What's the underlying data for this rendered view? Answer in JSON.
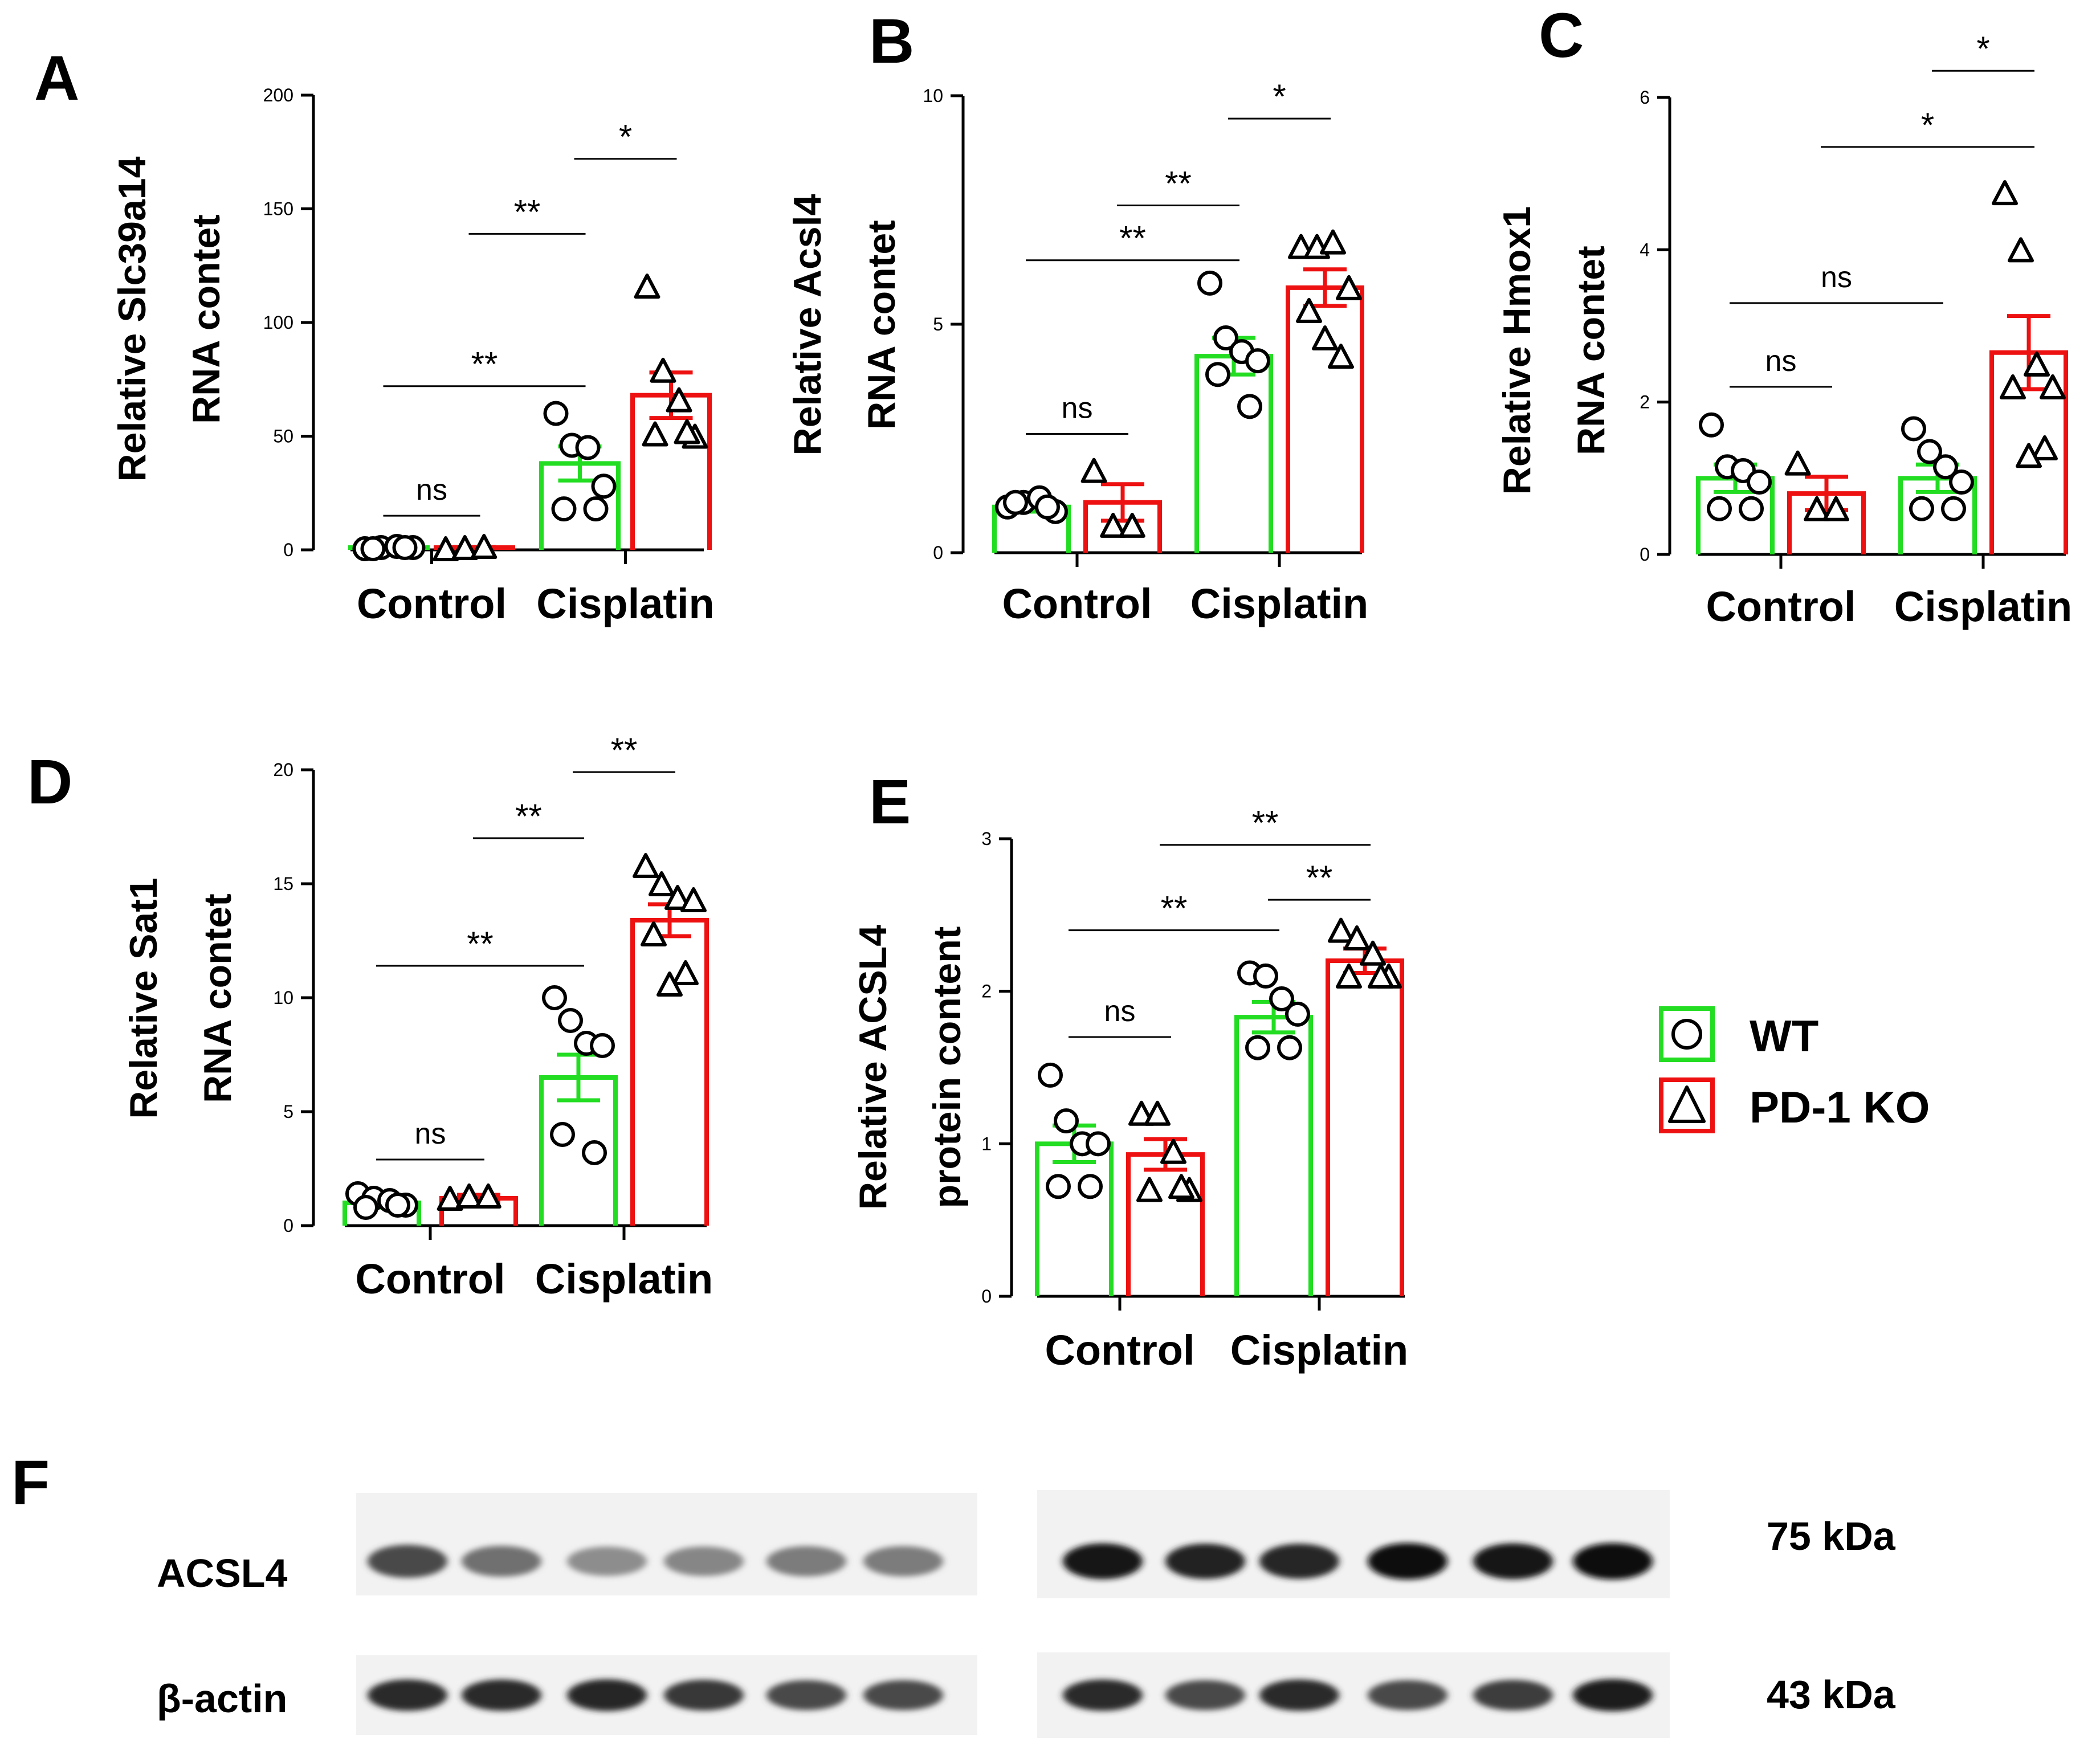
{
  "colors": {
    "wt": "#22dd22",
    "ko": "#ee1111",
    "axis": "#000000"
  },
  "legend": {
    "items": [
      {
        "label": "WT",
        "marker": "circle",
        "color": "#22dd22"
      },
      {
        "label": "PD-1 KO",
        "marker": "triangle",
        "color": "#ee1111"
      }
    ]
  },
  "chart_data": [
    {
      "panel": "A",
      "type": "bar",
      "ylabel_line1": "Relative Slc39a14",
      "ylabel_line2": "RNA contet",
      "categories": [
        "Control",
        "Cisplatin"
      ],
      "ylim": [
        0,
        200
      ],
      "yticks": [
        "0",
        "50",
        "100",
        "150",
        "200"
      ],
      "series": [
        {
          "name": "WT",
          "values": [
            1,
            38
          ],
          "sem": [
            0.5,
            7.5
          ],
          "points": [
            [
              0.5,
              1,
              1.5,
              1,
              0.5,
              1
            ],
            [
              60,
              46,
              45,
              28,
              18,
              18
            ]
          ]
        },
        {
          "name": "PD-1 KO",
          "values": [
            1,
            68
          ],
          "sem": [
            0.3,
            10
          ],
          "points": [
            [
              0.5,
              1,
              1.5
            ],
            [
              116,
              79,
              66,
              50,
              51,
              52
            ]
          ]
        }
      ],
      "brackets": [
        {
          "g1": [
            0,
            0
          ],
          "g2": [
            0,
            1
          ],
          "y": 15,
          "label": "ns"
        },
        {
          "g1": [
            0,
            0
          ],
          "g2": [
            1,
            0
          ],
          "y": 72,
          "label": "**"
        },
        {
          "g1": [
            0,
            1
          ],
          "g2": [
            1,
            0
          ],
          "y": 139,
          "label": "**"
        },
        {
          "g1": [
            1,
            0
          ],
          "g2": [
            1,
            1
          ],
          "y": 172,
          "label": "*"
        }
      ]
    },
    {
      "panel": "B",
      "type": "bar",
      "ylabel_line1": "Relative Acsl4",
      "ylabel_line2": "RNA contet",
      "categories": [
        "Control",
        "Cisplatin"
      ],
      "ylim": [
        0,
        10
      ],
      "yticks": [
        "0",
        "5",
        "10"
      ],
      "series": [
        {
          "name": "WT",
          "values": [
            1.0,
            4.3
          ],
          "sem": [
            0.1,
            0.4
          ],
          "points": [
            [
              1.0,
              1.1,
              1.2,
              0.9,
              1.1,
              1.0
            ],
            [
              5.9,
              4.7,
              4.4,
              4.2,
              3.9,
              3.2
            ]
          ]
        },
        {
          "name": "PD-1 KO",
          "values": [
            1.1,
            5.8
          ],
          "sem": [
            0.4,
            0.4
          ],
          "points": [
            [
              1.8,
              0.6,
              0.6
            ],
            [
              6.7,
              6.7,
              6.8,
              5.8,
              5.3,
              4.3,
              4.7
            ]
          ]
        }
      ],
      "brackets": [
        {
          "g1": [
            0,
            0
          ],
          "g2": [
            0,
            1
          ],
          "y": 2.6,
          "label": "ns"
        },
        {
          "g1": [
            0,
            0
          ],
          "g2": [
            1,
            0
          ],
          "y": 6.4,
          "label": "**"
        },
        {
          "g1": [
            0,
            1
          ],
          "g2": [
            1,
            0
          ],
          "y": 7.6,
          "label": "**"
        },
        {
          "g1": [
            1,
            0
          ],
          "g2": [
            1,
            1
          ],
          "y": 9.5,
          "label": "*"
        }
      ]
    },
    {
      "panel": "C",
      "type": "bar",
      "ylabel_line1": "Relative Hmox1",
      "ylabel_line2": "RNA contet",
      "categories": [
        "Control",
        "Cisplatin"
      ],
      "ylim": [
        0,
        6
      ],
      "yticks": [
        "0",
        "2",
        "4",
        "6"
      ],
      "series": [
        {
          "name": "WT",
          "values": [
            1.0,
            1.0
          ],
          "sem": [
            0.18,
            0.18
          ],
          "points": [
            [
              1.7,
              1.15,
              1.1,
              0.95,
              0.6,
              0.6
            ],
            [
              1.65,
              1.35,
              1.15,
              0.95,
              0.6,
              0.6
            ]
          ]
        },
        {
          "name": "PD-1 KO",
          "values": [
            0.8,
            2.65
          ],
          "sem": [
            0.22,
            0.48
          ],
          "points": [
            [
              1.2,
              0.6,
              0.6
            ],
            [
              4.75,
              4.0,
              2.5,
              2.2,
              2.2,
              1.4,
              1.3
            ]
          ]
        }
      ],
      "brackets": [
        {
          "g1": [
            0,
            0
          ],
          "g2": [
            0,
            1
          ],
          "y": 2.2,
          "label": "ns"
        },
        {
          "g1": [
            0,
            0
          ],
          "g2": [
            1,
            0
          ],
          "y": 3.3,
          "label": "ns"
        },
        {
          "g1": [
            0,
            1
          ],
          "g2": [
            1,
            1
          ],
          "y": 5.35,
          "label": "*"
        },
        {
          "g1": [
            1,
            0
          ],
          "g2": [
            1,
            1
          ],
          "y": 6.35,
          "label": "*"
        }
      ]
    },
    {
      "panel": "D",
      "type": "bar",
      "ylabel_line1": "Relative Sat1",
      "ylabel_line2": "RNA contet",
      "categories": [
        "Control",
        "Cisplatin"
      ],
      "ylim": [
        0,
        20
      ],
      "yticks": [
        "0",
        "5",
        "10",
        "15",
        "20"
      ],
      "series": [
        {
          "name": "WT",
          "values": [
            1.0,
            6.5
          ],
          "sem": [
            0.2,
            1.0
          ],
          "points": [
            [
              1.4,
              1.2,
              1.1,
              0.9,
              0.8,
              0.9
            ],
            [
              10.0,
              9.0,
              8.0,
              7.9,
              4.0,
              3.2
            ]
          ]
        },
        {
          "name": "PD-1 KO",
          "values": [
            1.2,
            13.4
          ],
          "sem": [
            0.15,
            0.7
          ],
          "points": [
            [
              1.2,
              1.3,
              1.3
            ],
            [
              15.8,
              15.0,
              14.4,
              14.3,
              12.8,
              11.1,
              10.6
            ]
          ]
        }
      ],
      "brackets": [
        {
          "g1": [
            0,
            0
          ],
          "g2": [
            0,
            1
          ],
          "y": 2.9,
          "label": "ns"
        },
        {
          "g1": [
            0,
            0
          ],
          "g2": [
            1,
            0
          ],
          "y": 11.4,
          "label": "**"
        },
        {
          "g1": [
            0,
            1
          ],
          "g2": [
            1,
            0
          ],
          "y": 17.0,
          "label": "**"
        },
        {
          "g1": [
            1,
            0
          ],
          "g2": [
            1,
            1
          ],
          "y": 19.9,
          "label": "**"
        }
      ]
    },
    {
      "panel": "E",
      "type": "bar",
      "ylabel_line1": "Relative ACSL4",
      "ylabel_line2": "protein content",
      "categories": [
        "Control",
        "Cisplatin"
      ],
      "ylim": [
        0,
        3
      ],
      "yticks": [
        "0",
        "1",
        "2",
        "3"
      ],
      "series": [
        {
          "name": "WT",
          "values": [
            1.0,
            1.83
          ],
          "sem": [
            0.12,
            0.1
          ],
          "points": [
            [
              1.45,
              1.15,
              1.0,
              1.0,
              0.72,
              0.72
            ],
            [
              2.12,
              2.1,
              1.95,
              1.85,
              1.63,
              1.63
            ]
          ]
        },
        {
          "name": "PD-1 KO",
          "values": [
            0.93,
            2.2
          ],
          "sem": [
            0.1,
            0.08
          ],
          "points": [
            [
              1.2,
              1.2,
              0.95,
              0.7,
              0.7,
              0.72
            ],
            [
              2.4,
              2.35,
              2.25,
              2.1,
              2.1,
              2.1
            ]
          ]
        }
      ],
      "brackets": [
        {
          "g1": [
            0,
            0
          ],
          "g2": [
            0,
            1
          ],
          "y": 1.7,
          "label": "ns"
        },
        {
          "g1": [
            0,
            0
          ],
          "g2": [
            1,
            0
          ],
          "y": 2.4,
          "label": "**"
        },
        {
          "g1": [
            0,
            1
          ],
          "g2": [
            1,
            1
          ],
          "y": 2.96,
          "label": "**"
        },
        {
          "g1": [
            1,
            0
          ],
          "g2": [
            1,
            1
          ],
          "y": 2.6,
          "label": "**"
        }
      ]
    }
  ],
  "blot": {
    "panel": "F",
    "rows": [
      {
        "label": "ACSL4",
        "size": "75 kDa",
        "intensities": [
          0.72,
          0.55,
          0.42,
          0.45,
          0.5,
          0.5,
          0.95,
          0.9,
          0.88,
          1.0,
          0.95,
          1.0
        ]
      },
      {
        "label": "β-actin",
        "size": "43 kDa",
        "intensities": [
          0.85,
          0.85,
          0.88,
          0.8,
          0.72,
          0.72,
          0.85,
          0.72,
          0.85,
          0.72,
          0.78,
          0.92
        ]
      }
    ]
  }
}
